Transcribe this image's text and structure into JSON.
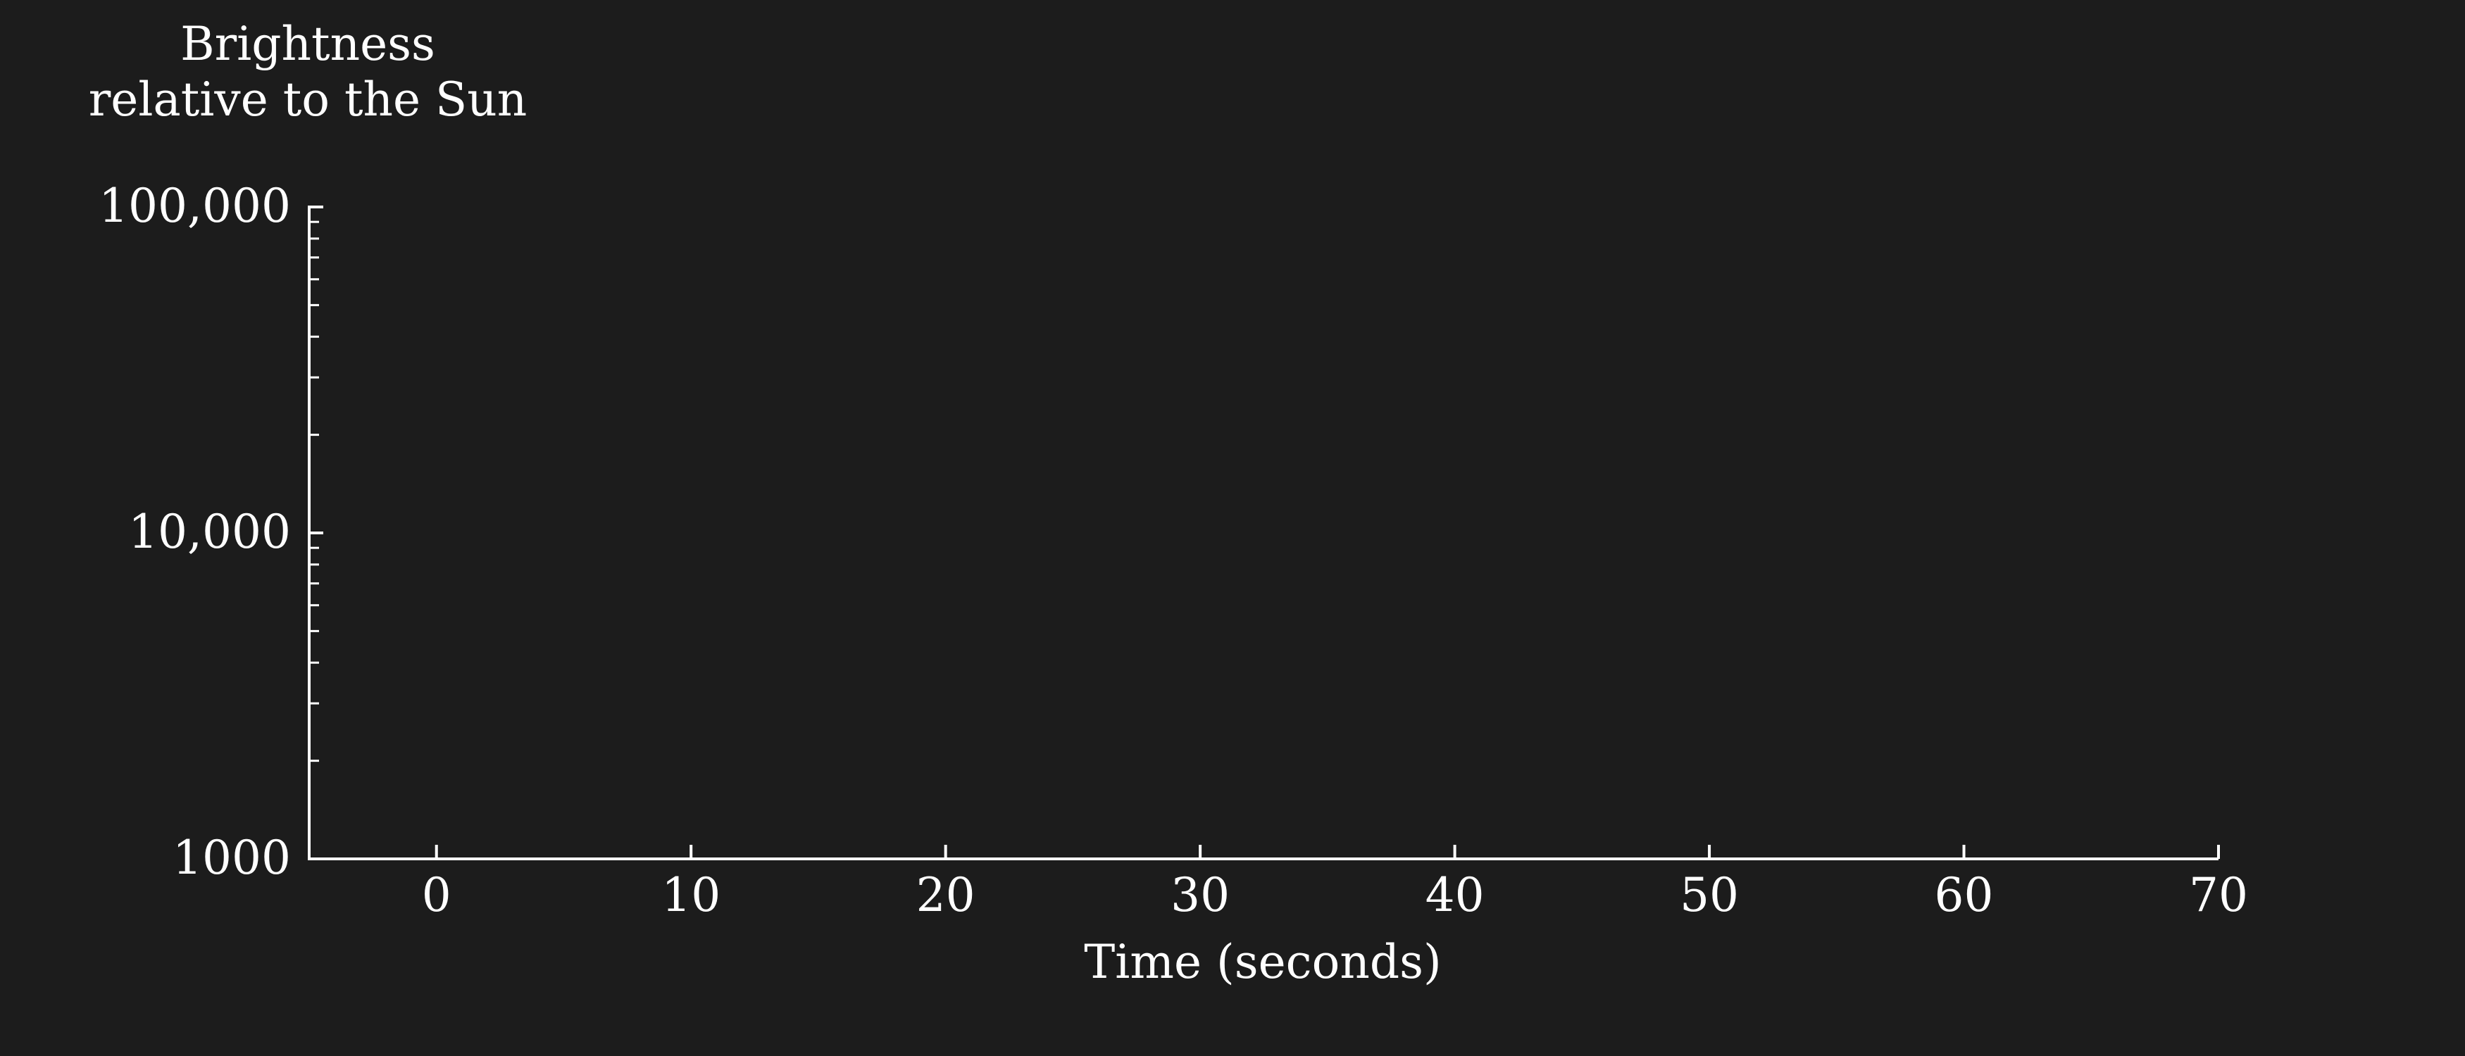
{
  "chart_data": {
    "type": "line",
    "title": "",
    "ylabel_lines": [
      "Brightness",
      "relative to the Sun"
    ],
    "xlabel": "Time (seconds)",
    "xlim": [
      -5,
      70
    ],
    "ylim": [
      1000,
      100000
    ],
    "yscale": "log",
    "x_ticks": [
      0,
      10,
      20,
      30,
      40,
      50,
      60,
      70
    ],
    "x_tick_labels": [
      "0",
      "10",
      "20",
      "30",
      "40",
      "50",
      "60",
      "70"
    ],
    "y_ticks": [
      1000,
      10000,
      100000
    ],
    "y_tick_labels": [
      "1000",
      "10,000",
      "100,000"
    ],
    "grid": false,
    "series": []
  },
  "colors": {
    "background": "#1c1c1c",
    "foreground": "#ffffff"
  }
}
